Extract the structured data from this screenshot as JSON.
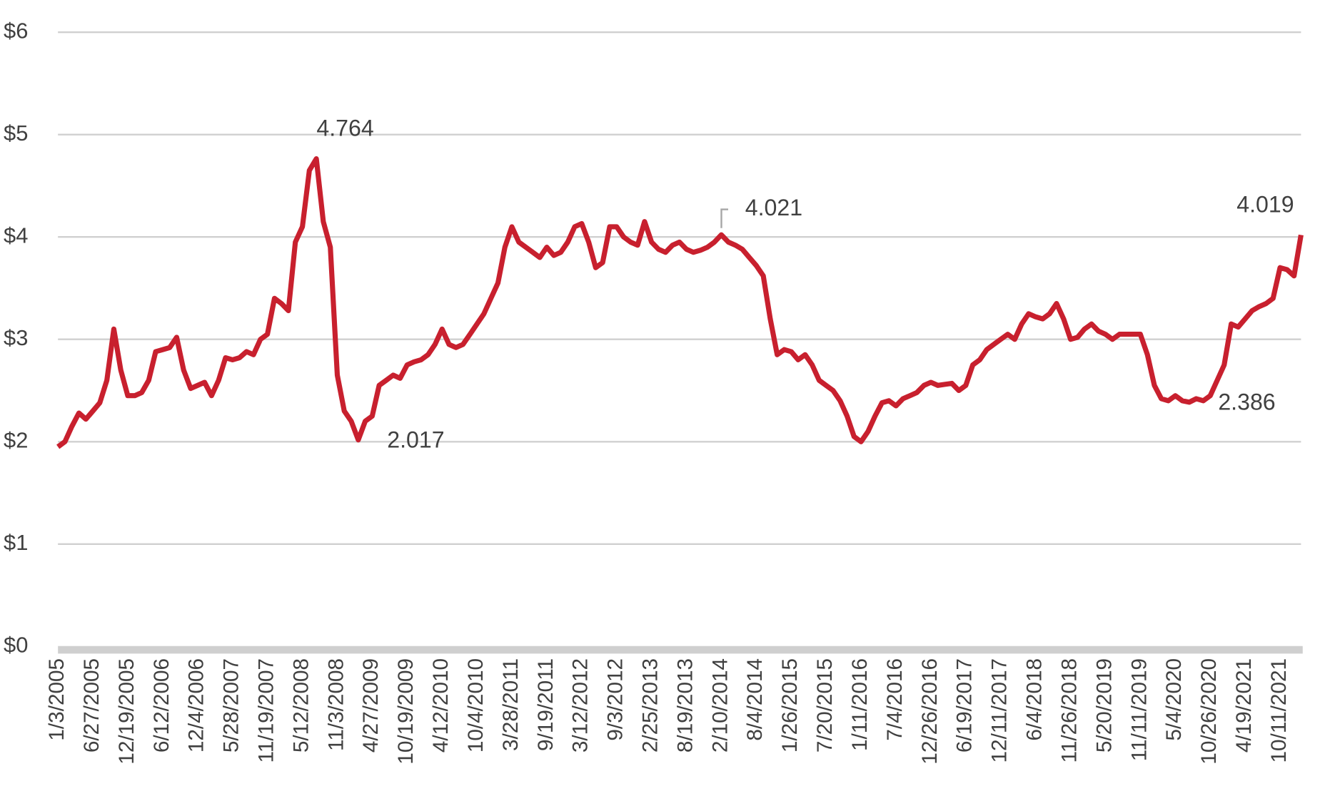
{
  "chart_data": {
    "type": "line",
    "categories": [
      "1/3/2005",
      null,
      null,
      null,
      null,
      "6/27/2005",
      null,
      null,
      null,
      null,
      "12/19/2005",
      null,
      null,
      null,
      null,
      "6/12/2006",
      null,
      null,
      null,
      null,
      "12/4/2006",
      null,
      null,
      null,
      null,
      "5/28/2007",
      null,
      null,
      null,
      null,
      "11/19/2007",
      null,
      null,
      null,
      null,
      "5/12/2008",
      null,
      null,
      null,
      null,
      "11/3/2008",
      null,
      null,
      null,
      null,
      "4/27/2009",
      null,
      null,
      null,
      null,
      "10/19/2009",
      null,
      null,
      null,
      null,
      "4/12/2010",
      null,
      null,
      null,
      null,
      "10/4/2010",
      null,
      null,
      null,
      null,
      "3/28/2011",
      null,
      null,
      null,
      null,
      "9/19/2011",
      null,
      null,
      null,
      null,
      "3/12/2012",
      null,
      null,
      null,
      null,
      "9/3/2012",
      null,
      null,
      null,
      null,
      "2/25/2013",
      null,
      null,
      null,
      null,
      "8/19/2013",
      null,
      null,
      null,
      null,
      "2/10/2014",
      null,
      null,
      null,
      null,
      "8/4/2014",
      null,
      null,
      null,
      null,
      "1/26/2015",
      null,
      null,
      null,
      null,
      "7/20/2015",
      null,
      null,
      null,
      null,
      "1/11/2016",
      null,
      null,
      null,
      null,
      "7/4/2016",
      null,
      null,
      null,
      null,
      "12/26/2016",
      null,
      null,
      null,
      null,
      "6/19/2017",
      null,
      null,
      null,
      null,
      "12/11/2017",
      null,
      null,
      null,
      null,
      "6/4/2018",
      null,
      null,
      null,
      null,
      "11/26/2018",
      null,
      null,
      null,
      null,
      "5/20/2019",
      null,
      null,
      null,
      null,
      "11/11/2019",
      null,
      null,
      null,
      null,
      "5/4/2020",
      null,
      null,
      null,
      null,
      "10/26/2020",
      null,
      null,
      null,
      null,
      "4/19/2021",
      null,
      null,
      null,
      null,
      "10/11/2021",
      null,
      null,
      null
    ],
    "series": [
      {
        "color": "#c8202e",
        "values": [
          1.95,
          2.0,
          2.15,
          2.28,
          2.22,
          2.3,
          2.38,
          2.6,
          3.1,
          2.7,
          2.45,
          2.45,
          2.48,
          2.6,
          2.88,
          2.9,
          2.92,
          3.02,
          2.7,
          2.52,
          2.55,
          2.58,
          2.45,
          2.6,
          2.82,
          2.8,
          2.82,
          2.88,
          2.85,
          3.0,
          3.05,
          3.4,
          3.35,
          3.28,
          3.95,
          4.1,
          4.65,
          4.764,
          4.15,
          3.9,
          2.65,
          2.3,
          2.2,
          2.017,
          2.2,
          2.25,
          2.55,
          2.6,
          2.65,
          2.62,
          2.75,
          2.78,
          2.8,
          2.85,
          2.95,
          3.1,
          2.95,
          2.92,
          2.95,
          3.05,
          3.15,
          3.25,
          3.4,
          3.55,
          3.9,
          4.1,
          3.95,
          3.9,
          3.85,
          3.8,
          3.9,
          3.82,
          3.85,
          3.95,
          4.1,
          4.13,
          3.95,
          3.7,
          3.75,
          4.1,
          4.1,
          4.0,
          3.95,
          3.92,
          4.15,
          3.95,
          3.88,
          3.85,
          3.92,
          3.95,
          3.88,
          3.85,
          3.87,
          3.9,
          3.95,
          4.021,
          3.95,
          3.92,
          3.88,
          3.8,
          3.72,
          3.62,
          3.2,
          2.85,
          2.9,
          2.88,
          2.8,
          2.85,
          2.75,
          2.6,
          2.55,
          2.5,
          2.4,
          2.25,
          2.05,
          2.0,
          2.1,
          2.25,
          2.38,
          2.4,
          2.35,
          2.42,
          2.45,
          2.48,
          2.55,
          2.58,
          2.55,
          2.56,
          2.57,
          2.5,
          2.55,
          2.75,
          2.8,
          2.9,
          2.95,
          3.0,
          3.05,
          3.0,
          3.15,
          3.25,
          3.22,
          3.2,
          3.25,
          3.35,
          3.2,
          3.0,
          3.02,
          3.1,
          3.15,
          3.08,
          3.05,
          3.0,
          3.05,
          3.05,
          3.05,
          3.05,
          2.85,
          2.55,
          2.42,
          2.4,
          2.45,
          2.4,
          2.386,
          2.42,
          2.4,
          2.45,
          2.6,
          2.75,
          3.15,
          3.12,
          3.2,
          3.28,
          3.32,
          3.35,
          3.4,
          3.7,
          3.68,
          3.62,
          4.019
        ],
        "value_labels": [
          null,
          null,
          null,
          null,
          null,
          null,
          null,
          null,
          null,
          null,
          null,
          null,
          null,
          null,
          null,
          null,
          null,
          null,
          null,
          null,
          null,
          null,
          null,
          null,
          null,
          null,
          null,
          null,
          null,
          null,
          null,
          null,
          null,
          null,
          null,
          null,
          null,
          "4.764",
          null,
          null,
          null,
          null,
          null,
          "2.017",
          null,
          null,
          null,
          null,
          null,
          null,
          null,
          null,
          null,
          null,
          null,
          null,
          null,
          null,
          null,
          null,
          null,
          null,
          null,
          null,
          null,
          null,
          null,
          null,
          null,
          null,
          null,
          null,
          null,
          null,
          null,
          null,
          null,
          null,
          null,
          null,
          null,
          null,
          null,
          null,
          null,
          null,
          null,
          null,
          null,
          null,
          null,
          null,
          null,
          null,
          null,
          "4.021",
          null,
          null,
          null,
          null,
          null,
          null,
          null,
          null,
          null,
          null,
          null,
          null,
          null,
          null,
          null,
          null,
          null,
          null,
          null,
          null,
          null,
          null,
          null,
          null,
          null,
          null,
          null,
          null,
          null,
          null,
          null,
          null,
          null,
          null,
          null,
          null,
          null,
          null,
          null,
          null,
          null,
          null,
          null,
          null,
          null,
          null,
          null,
          null,
          null,
          null,
          null,
          null,
          null,
          null,
          null,
          null,
          null,
          null,
          null,
          null,
          null,
          null,
          null,
          null,
          null,
          null,
          "2.386",
          null,
          null,
          null,
          null,
          null,
          null,
          null,
          null,
          null,
          null,
          null,
          null,
          null,
          null,
          null,
          "4.019"
        ]
      }
    ],
    "ylim": [
      0,
      6
    ],
    "yticks": [
      {
        "value": 0,
        "label": "$0"
      },
      {
        "value": 1,
        "label": "$1"
      },
      {
        "value": 2,
        "label": "$2"
      },
      {
        "value": 3,
        "label": "$3"
      },
      {
        "value": 4,
        "label": "$4"
      },
      {
        "value": 5,
        "label": "$5"
      },
      {
        "value": 6,
        "label": "$6"
      }
    ],
    "grid": true
  }
}
